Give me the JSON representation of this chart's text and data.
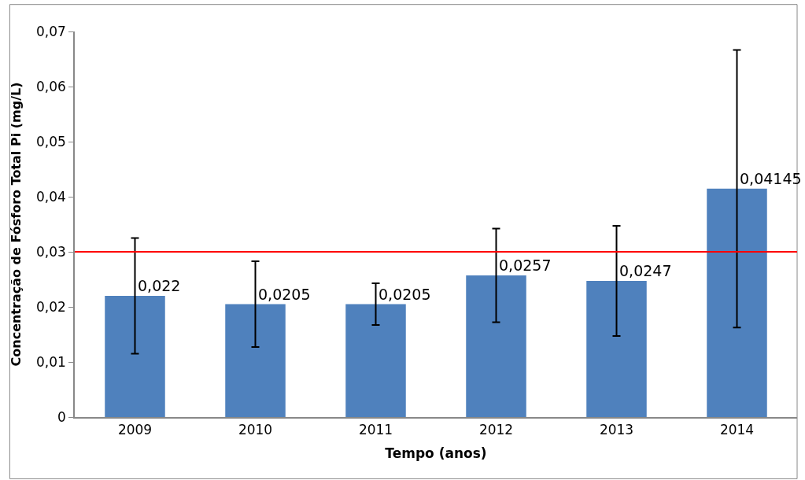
{
  "chart_data": {
    "type": "bar",
    "xlabel": "Tempo (anos)",
    "ylabel": "Concentração de Fósforo Total Pi (mg/L)",
    "categories": [
      "2009",
      "2010",
      "2011",
      "2012",
      "2013",
      "2014"
    ],
    "values": [
      0.022,
      0.0205,
      0.0205,
      0.0257,
      0.0247,
      0.04145
    ],
    "errors": [
      0.0105,
      0.0078,
      0.0038,
      0.0085,
      0.01,
      0.0252
    ],
    "value_labels": [
      "0,022",
      "0,0205",
      "0,0205",
      "0,0257",
      "0,0247",
      "0,04145"
    ],
    "color": "#4f81bd",
    "ylim": [
      0,
      0.07
    ],
    "yticks": [
      {
        "value": 0,
        "label": "0"
      },
      {
        "value": 0.01,
        "label": "0,01"
      },
      {
        "value": 0.02,
        "label": "0,02"
      },
      {
        "value": 0.03,
        "label": "0,03"
      },
      {
        "value": 0.04,
        "label": "0,04"
      },
      {
        "value": 0.05,
        "label": "0,05"
      },
      {
        "value": 0.06,
        "label": "0,06"
      },
      {
        "value": 0.07,
        "label": "0,07"
      }
    ],
    "ref_lines": [
      {
        "axis": "y",
        "value": 0.03,
        "color": "#ff0000"
      }
    ],
    "grid": false,
    "legend": false
  }
}
